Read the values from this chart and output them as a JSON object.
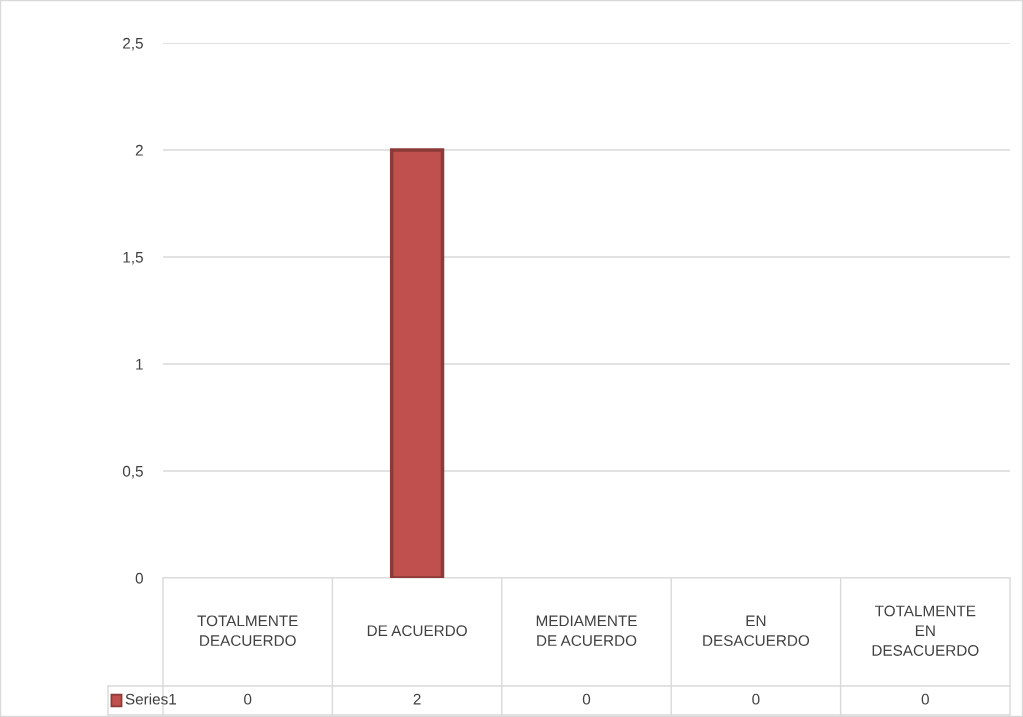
{
  "chart_data": {
    "type": "bar",
    "categories": [
      "TOTALMENTE DEACUERDO",
      "DE ACUERDO",
      "MEDIAMENTE DE ACUERDO",
      "EN DESACUERDO",
      "TOTALMENTE EN DESACUERDO"
    ],
    "series": [
      {
        "name": "Series1",
        "color": "#c0504d",
        "values": [
          0,
          2,
          0,
          0,
          0
        ]
      }
    ],
    "ylim": [
      0,
      2.5
    ],
    "yticks": [
      0,
      {
        "value": 0.5,
        "label": "0,5"
      },
      1,
      {
        "value": 1.5,
        "label": "1,5"
      },
      2,
      {
        "value": 2.5,
        "label": "2,5"
      }
    ],
    "grid": "y",
    "legend": "bottom",
    "data_labels": true
  }
}
